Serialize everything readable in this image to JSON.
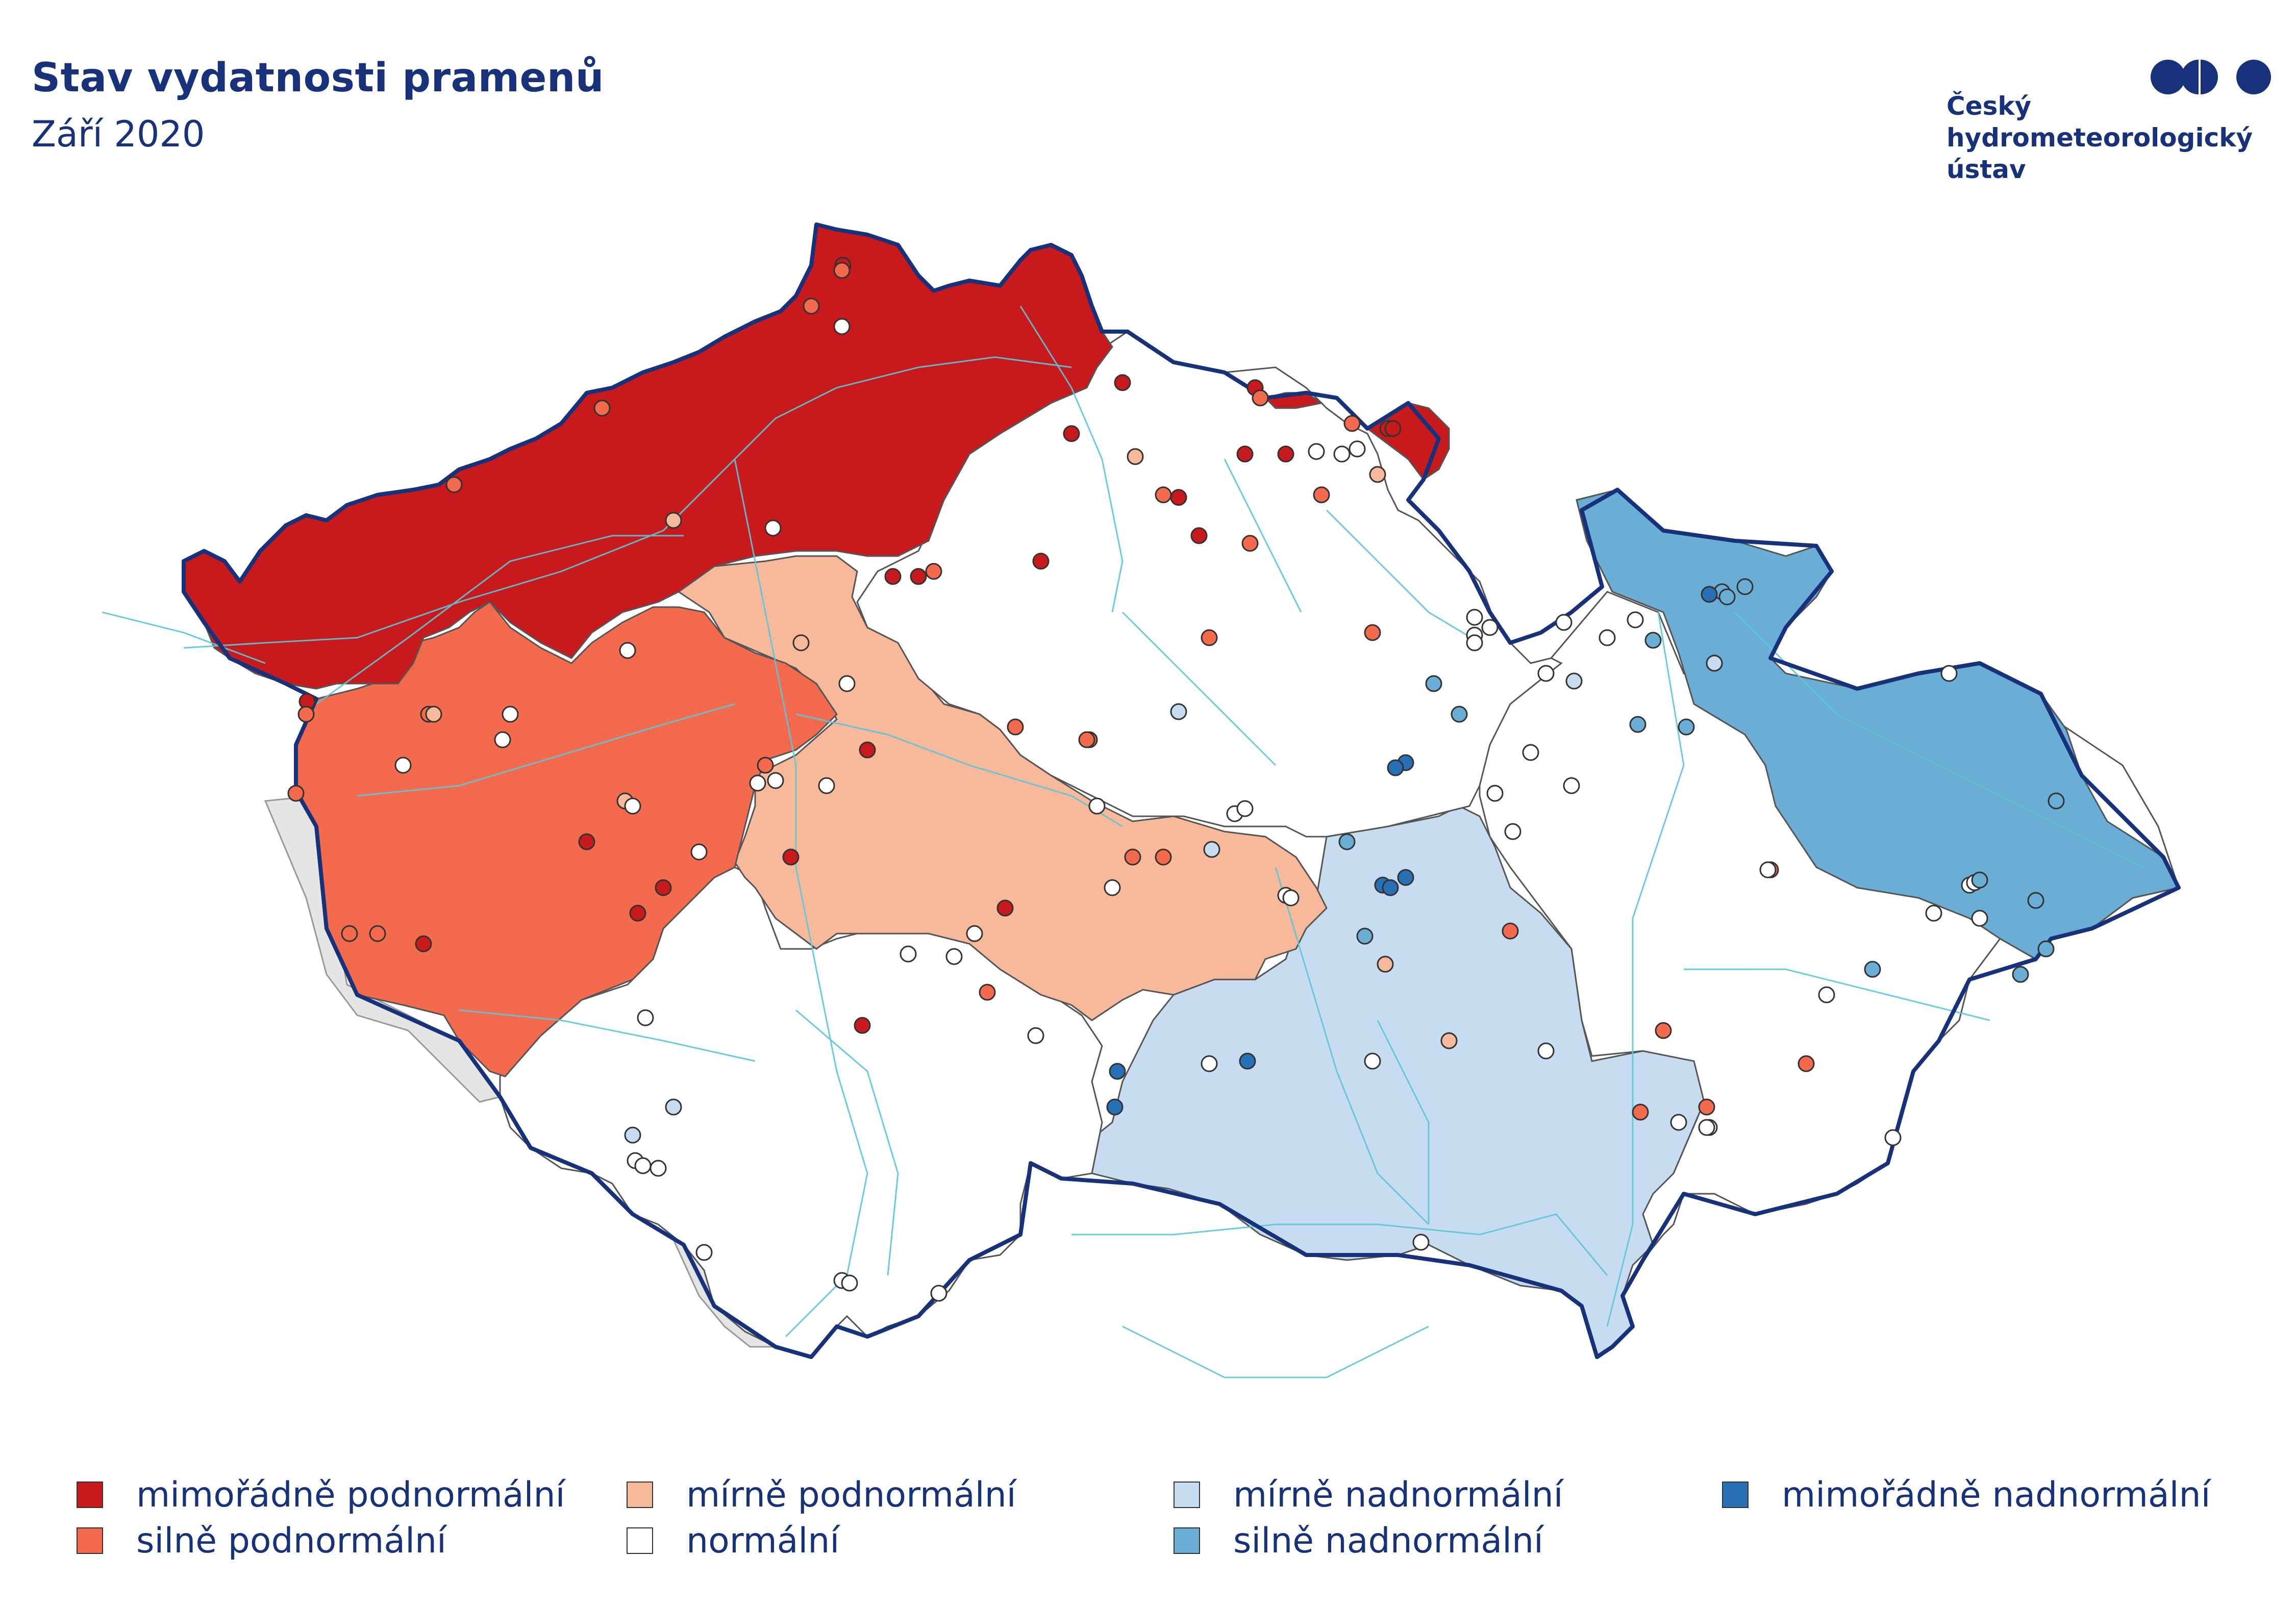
{
  "header": {
    "title": "Stav vydatnosti pramenů",
    "subtitle": "Září 2020"
  },
  "logo": {
    "text": "Český\nhydrometeorologický\nústav"
  },
  "colors": {
    "extreme_below": "#c8191d",
    "strong_below": "#f36b4c",
    "mild_below": "#f8b99b",
    "normal": "#ffffff",
    "mild_above": "#c7dcf0",
    "strong_above": "#6aaed6",
    "extreme_above": "#2870b5",
    "border": "#17327a",
    "river": "#5cc6d6",
    "outside": "#e5e5e5"
  },
  "legend": [
    {
      "label": "mimořádně podnormální",
      "class": "extreme_below"
    },
    {
      "label": "silně podnormální",
      "class": "strong_below"
    },
    {
      "label": "mírně podnormální",
      "class": "mild_below"
    },
    {
      "label": "normální",
      "class": "normal"
    },
    {
      "label": "mírně nadnormální",
      "class": "mild_above"
    },
    {
      "label": "silně nadnormální",
      "class": "strong_above"
    },
    {
      "label": "mimořádně nadnormální",
      "class": "extreme_above"
    }
  ],
  "map": {
    "regions": [
      {
        "name": "north-bohemia",
        "class": "extreme_below"
      },
      {
        "name": "west-bohemia",
        "class": "strong_below"
      },
      {
        "name": "central-upper-sazava",
        "class": "mild_below"
      },
      {
        "name": "east-bohemia",
        "class": "normal"
      },
      {
        "name": "south-bohemia",
        "class": "normal"
      },
      {
        "name": "south-moravia",
        "class": "mild_above"
      },
      {
        "name": "north-moravia",
        "class": "strong_above"
      },
      {
        "name": "east-moravia",
        "class": "normal"
      },
      {
        "name": "north-east-corner",
        "class": "extreme_below"
      }
    ],
    "springs_by_class": {
      "extreme_below": 22,
      "strong_below": 30,
      "mild_below": 9,
      "normal": 60,
      "mild_above": 6,
      "strong_above": 16,
      "extreme_above": 9
    }
  }
}
